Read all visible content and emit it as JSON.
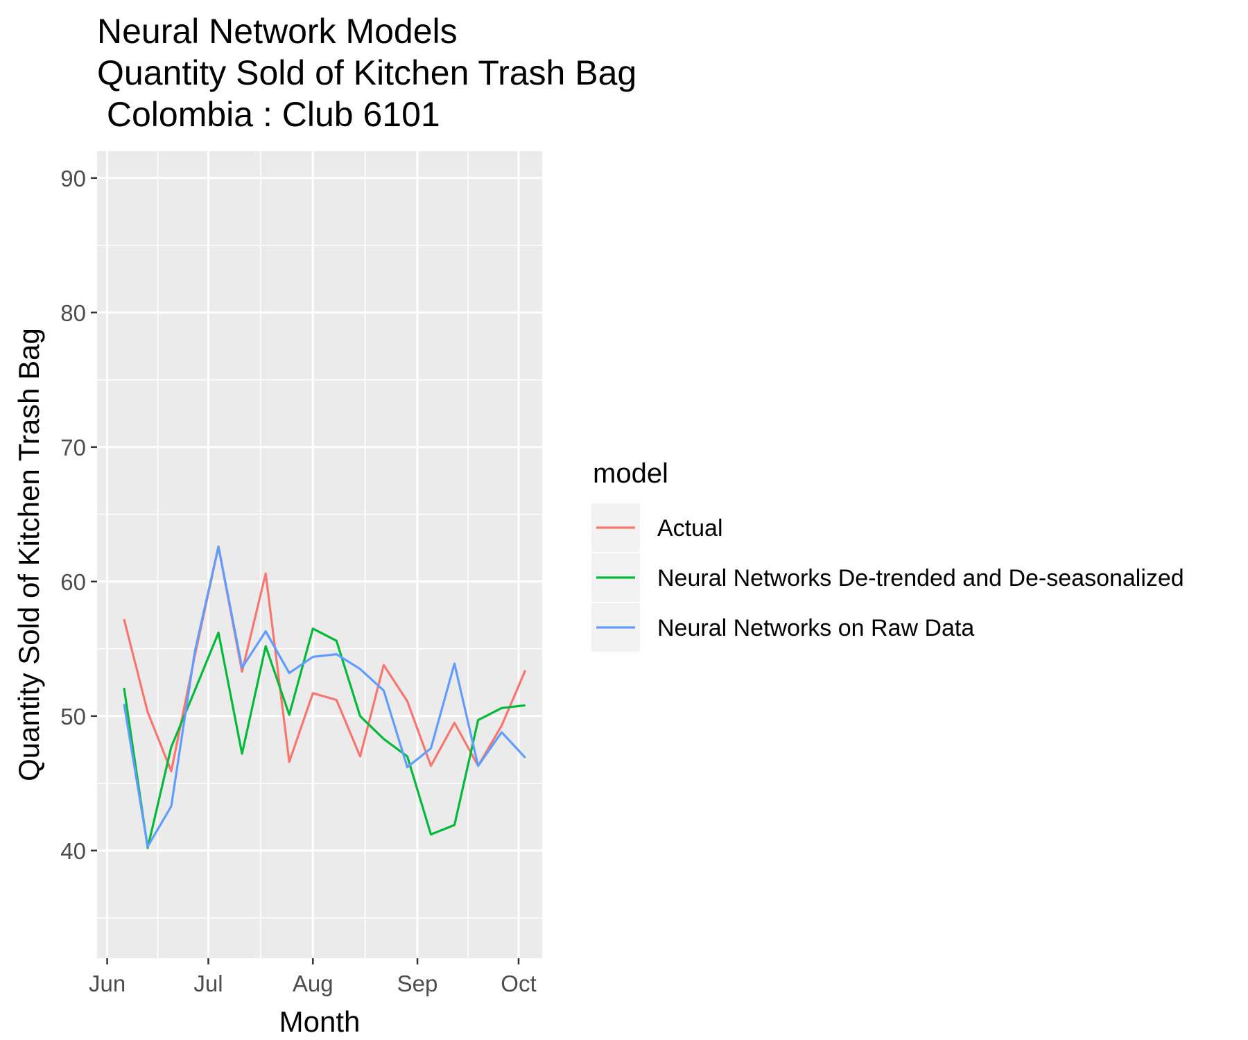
{
  "chart_data": {
    "type": "line",
    "title": [
      "Neural Network Models",
      "Quantity Sold of Kitchen Trash Bag",
      " Colombia : Club 6101"
    ],
    "xlabel": "Month",
    "ylabel": "Quantity Sold of Kitchen Trash Bag",
    "xlim": [
      "2019-05-29",
      "2019-10-08"
    ],
    "ylim": [
      32,
      92
    ],
    "y_ticks": [
      40,
      50,
      60,
      70,
      80,
      90
    ],
    "x_ticks": [
      {
        "date": "2019-06-01",
        "label": "Jun"
      },
      {
        "date": "2019-07-01",
        "label": "Jul"
      },
      {
        "date": "2019-08-01",
        "label": "Aug"
      },
      {
        "date": "2019-09-01",
        "label": "Sep"
      },
      {
        "date": "2019-10-01",
        "label": "Oct"
      }
    ],
    "x": [
      "2019-06-06",
      "2019-06-13",
      "2019-06-20",
      "2019-06-27",
      "2019-07-04",
      "2019-07-11",
      "2019-07-18",
      "2019-07-25",
      "2019-08-01",
      "2019-08-08",
      "2019-08-15",
      "2019-08-22",
      "2019-08-29",
      "2019-09-05",
      "2019-09-12",
      "2019-09-19",
      "2019-09-26",
      "2019-10-03"
    ],
    "grid": true,
    "legend": {
      "title": "model",
      "position": "right"
    },
    "series": [
      {
        "name": "Actual",
        "color": "#F8766D",
        "values": [
          57.2,
          50.3,
          45.9,
          54.5,
          62.6,
          53.3,
          60.6,
          46.6,
          51.7,
          51.2,
          47.0,
          53.8,
          51.1,
          46.3,
          49.5,
          46.3,
          49.3,
          53.4
        ]
      },
      {
        "name": "Neural Networks De-trended and De-seasonalized",
        "color": "#00BA38",
        "values": [
          52.1,
          40.2,
          47.7,
          51.9,
          56.2,
          47.2,
          55.2,
          50.1,
          56.5,
          55.6,
          50.0,
          48.3,
          47.0,
          41.2,
          41.9,
          49.7,
          50.6,
          50.8
        ]
      },
      {
        "name": "Neural Networks on Raw Data",
        "color": "#619CFF",
        "values": [
          50.9,
          40.3,
          43.3,
          54.8,
          62.6,
          53.6,
          56.3,
          53.2,
          54.4,
          54.6,
          53.5,
          51.9,
          46.2,
          47.6,
          53.9,
          46.3,
          48.8,
          46.9
        ]
      }
    ]
  }
}
